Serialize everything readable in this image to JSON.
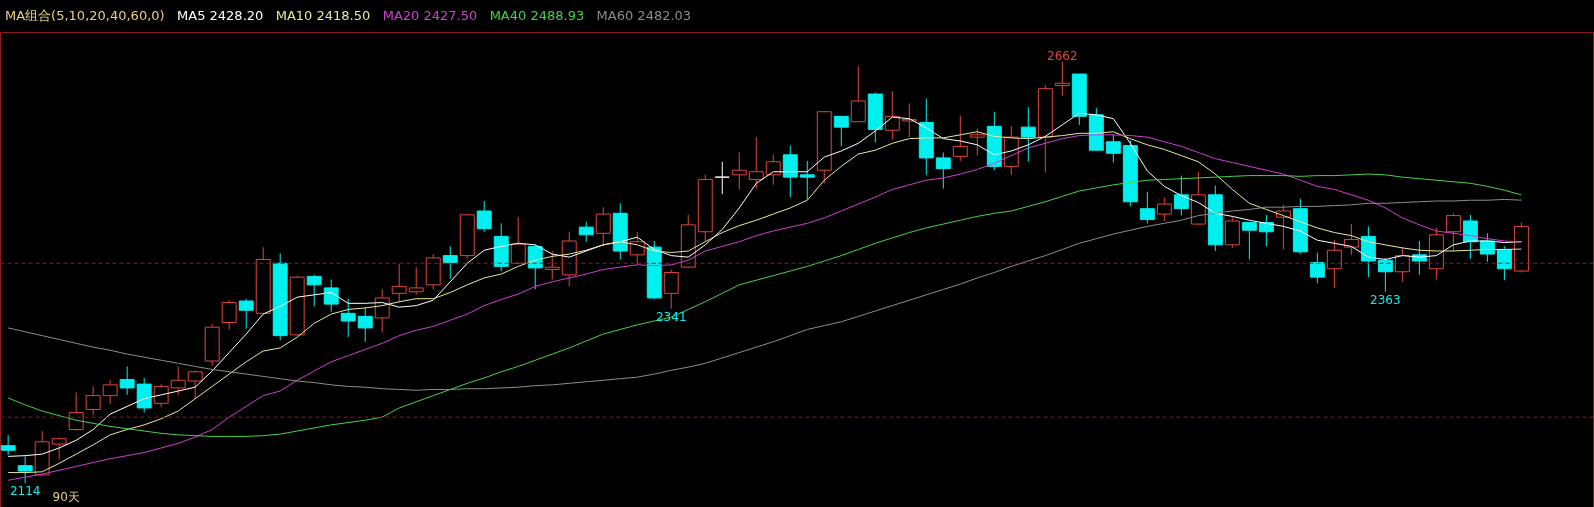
{
  "chart_data": {
    "type": "candlestick",
    "title": "MA组合(5,10,20,40,60,0)",
    "categories": [
      null,
      null,
      null,
      null,
      null,
      null,
      null,
      null,
      null,
      null,
      null,
      null,
      null,
      null,
      null,
      null,
      null,
      null,
      null,
      null,
      null,
      null,
      null,
      null,
      null,
      null,
      null,
      null,
      null,
      null,
      null,
      null,
      null,
      null,
      null,
      null,
      null,
      null,
      null,
      null,
      null,
      null,
      null,
      null,
      null,
      null,
      null,
      null,
      null,
      null,
      null,
      null,
      null,
      null,
      null,
      null,
      null,
      null,
      null,
      null,
      null,
      null,
      null,
      null,
      null,
      null,
      null,
      null,
      null,
      null,
      null,
      null,
      null,
      null,
      null,
      null,
      null,
      null,
      null,
      null,
      null,
      null,
      null,
      null,
      null,
      null,
      null,
      null,
      null,
      null
    ],
    "ohlc": [
      [
        2163,
        2177,
        2151,
        2157
      ],
      [
        2137,
        2149,
        2114,
        2130
      ],
      [
        2125,
        2182,
        2124,
        2168
      ],
      [
        2165,
        2174,
        2145,
        2172
      ],
      [
        2184,
        2232,
        2182,
        2206
      ],
      [
        2210,
        2240,
        2203,
        2228
      ],
      [
        2228,
        2248,
        2217,
        2242
      ],
      [
        2249,
        2266,
        2229,
        2238
      ],
      [
        2243,
        2251,
        2206,
        2212
      ],
      [
        2218,
        2243,
        2213,
        2240
      ],
      [
        2238,
        2266,
        2229,
        2248
      ],
      [
        2247,
        2261,
        2224,
        2259
      ],
      [
        2273,
        2321,
        2267,
        2317
      ],
      [
        2323,
        2352,
        2314,
        2349
      ],
      [
        2351,
        2354,
        2315,
        2339
      ],
      [
        2335,
        2421,
        2335,
        2405
      ],
      [
        2400,
        2413,
        2300,
        2306
      ],
      [
        2307,
        2384,
        2306,
        2382
      ],
      [
        2383,
        2385,
        2344,
        2372
      ],
      [
        2368,
        2379,
        2337,
        2347
      ],
      [
        2335,
        2354,
        2304,
        2325
      ],
      [
        2331,
        2342,
        2298,
        2316
      ],
      [
        2329,
        2366,
        2310,
        2355
      ],
      [
        2361,
        2399,
        2349,
        2370
      ],
      [
        2363,
        2395,
        2359,
        2368
      ],
      [
        2372,
        2412,
        2366,
        2407
      ],
      [
        2410,
        2422,
        2380,
        2401
      ],
      [
        2410,
        2464,
        2406,
        2463
      ],
      [
        2468,
        2481,
        2441,
        2445
      ],
      [
        2435,
        2452,
        2390,
        2396
      ],
      [
        2400,
        2460,
        2400,
        2425
      ],
      [
        2422,
        2424,
        2366,
        2394
      ],
      [
        2392,
        2416,
        2379,
        2395
      ],
      [
        2385,
        2441,
        2370,
        2429
      ],
      [
        2447,
        2454,
        2428,
        2437
      ],
      [
        2439,
        2473,
        2422,
        2464
      ],
      [
        2465,
        2478,
        2405,
        2416
      ],
      [
        2411,
        2441,
        2398,
        2428
      ],
      [
        2421,
        2429,
        2353,
        2355
      ],
      [
        2361,
        2392,
        2341,
        2388
      ],
      [
        2395,
        2463,
        2394,
        2450
      ],
      [
        2441,
        2515,
        2428,
        2509
      ],
      [
        2512,
        2532,
        2490,
        2512
      ],
      [
        2515,
        2544,
        2496,
        2521
      ],
      [
        2509,
        2564,
        2497,
        2519
      ],
      [
        2515,
        2541,
        2502,
        2532
      ],
      [
        2541,
        2553,
        2486,
        2512
      ],
      [
        2515,
        2533,
        2483,
        2512
      ],
      [
        2521,
        2598,
        2504,
        2597
      ],
      [
        2591,
        2591,
        2552,
        2577
      ],
      [
        2584,
        2656,
        2584,
        2611
      ],
      [
        2620,
        2622,
        2557,
        2574
      ],
      [
        2573,
        2624,
        2561,
        2591
      ],
      [
        2585,
        2608,
        2564,
        2587
      ],
      [
        2583,
        2614,
        2515,
        2537
      ],
      [
        2537,
        2544,
        2497,
        2523
      ],
      [
        2539,
        2592,
        2533,
        2552
      ],
      [
        2564,
        2575,
        2540,
        2567
      ],
      [
        2578,
        2597,
        2521,
        2526
      ],
      [
        2526,
        2578,
        2515,
        2564
      ],
      [
        2577,
        2603,
        2532,
        2564
      ],
      [
        2564,
        2632,
        2518,
        2627
      ],
      [
        2631,
        2662,
        2618,
        2634
      ],
      [
        2646,
        2646,
        2580,
        2591
      ],
      [
        2593,
        2602,
        2546,
        2547
      ],
      [
        2558,
        2567,
        2531,
        2543
      ],
      [
        2553,
        2560,
        2474,
        2480
      ],
      [
        2471,
        2493,
        2452,
        2457
      ],
      [
        2464,
        2485,
        2455,
        2477
      ],
      [
        2489,
        2514,
        2462,
        2471
      ],
      [
        2451,
        2519,
        2450,
        2489
      ],
      [
        2489,
        2501,
        2416,
        2424
      ],
      [
        2424,
        2460,
        2420,
        2455
      ],
      [
        2453,
        2453,
        2405,
        2443
      ],
      [
        2453,
        2463,
        2422,
        2441
      ],
      [
        2460,
        2476,
        2418,
        2468
      ],
      [
        2471,
        2484,
        2412,
        2415
      ],
      [
        2401,
        2414,
        2374,
        2382
      ],
      [
        2393,
        2430,
        2368,
        2417
      ],
      [
        2421,
        2451,
        2411,
        2431
      ],
      [
        2435,
        2448,
        2382,
        2403
      ],
      [
        2404,
        2407,
        2363,
        2389
      ],
      [
        2389,
        2421,
        2376,
        2410
      ],
      [
        2411,
        2429,
        2385,
        2403
      ],
      [
        2393,
        2446,
        2379,
        2437
      ],
      [
        2441,
        2465,
        2416,
        2462
      ],
      [
        2455,
        2463,
        2406,
        2428
      ],
      [
        2429,
        2439,
        2402,
        2412
      ],
      [
        2418,
        2422,
        2378,
        2393
      ],
      [
        2390,
        2453,
        2388,
        2448
      ]
    ],
    "series": [
      {
        "name": "MA5 2428.20",
        "type": "line",
        "color": "#ffffff",
        "values": [
          2149,
          2150,
          2152,
          2160,
          2170,
          2184,
          2204,
          2214,
          2224,
          2229,
          2234,
          2239,
          2260,
          2284,
          2308,
          2334,
          2344,
          2356,
          2359,
          2362,
          2348,
          2348,
          2349,
          2343,
          2345,
          2352,
          2376,
          2400,
          2417,
          2422,
          2426,
          2424,
          2412,
          2408,
          2416,
          2424,
          2428,
          2434,
          2418,
          2410,
          2408,
          2424,
          2444,
          2472,
          2504,
          2519,
          2519,
          2519,
          2538,
          2546,
          2556,
          2572,
          2590,
          2588,
          2576,
          2562,
          2559,
          2554,
          2541,
          2546,
          2554,
          2565,
          2580,
          2595,
          2593,
          2588,
          2556,
          2520,
          2500,
          2488,
          2479,
          2465,
          2461,
          2456,
          2452,
          2448,
          2442,
          2430,
          2426,
          2422,
          2408,
          2405,
          2410,
          2408,
          2410,
          2424,
          2429,
          2429,
          2427,
          2428.2
        ]
      },
      {
        "name": "MA10 2418.50",
        "type": "line",
        "color": "#e8e89a",
        "values": [
          2128,
          2128,
          2129,
          2140,
          2152,
          2164,
          2177,
          2184,
          2190,
          2198,
          2208,
          2224,
          2240,
          2256,
          2272,
          2286,
          2290,
          2304,
          2322,
          2334,
          2340,
          2342,
          2345,
          2350,
          2354,
          2354,
          2362,
          2372,
          2381,
          2386,
          2396,
          2404,
          2409,
          2412,
          2417,
          2424,
          2428,
          2424,
          2416,
          2414,
          2416,
          2428,
          2440,
          2449,
          2456,
          2464,
          2472,
          2482,
          2508,
          2526,
          2542,
          2547,
          2556,
          2562,
          2563,
          2563,
          2567,
          2571,
          2565,
          2563,
          2562,
          2564,
          2566,
          2569,
          2569,
          2571,
          2562,
          2554,
          2548,
          2540,
          2532,
          2516,
          2496,
          2478,
          2470,
          2462,
          2454,
          2446,
          2440,
          2436,
          2428,
          2424,
          2420,
          2417,
          2416,
          2416,
          2417,
          2418,
          2418,
          2418.5
        ]
      },
      {
        "name": "MA20 2427.50",
        "type": "line",
        "color": "#d23cd2",
        "values": [
          2118,
          2122,
          2126,
          2131,
          2136,
          2141,
          2146,
          2150,
          2154,
          2160,
          2166,
          2174,
          2184,
          2200,
          2214,
          2228,
          2234,
          2248,
          2260,
          2272,
          2280,
          2288,
          2296,
          2306,
          2313,
          2318,
          2326,
          2334,
          2345,
          2353,
          2360,
          2370,
          2376,
          2381,
          2386,
          2392,
          2395,
          2398,
          2397,
          2398,
          2404,
          2416,
          2422,
          2428,
          2436,
          2442,
          2447,
          2452,
          2459,
          2468,
          2477,
          2486,
          2496,
          2502,
          2508,
          2511,
          2516,
          2522,
          2530,
          2540,
          2550,
          2556,
          2562,
          2566,
          2567,
          2567,
          2566,
          2564,
          2558,
          2552,
          2544,
          2536,
          2531,
          2526,
          2521,
          2516,
          2508,
          2500,
          2496,
          2489,
          2482,
          2472,
          2459,
          2450,
          2442,
          2439,
          2436,
          2432,
          2429,
          2427.5
        ]
      },
      {
        "name": "MA40 2488.93",
        "type": "line",
        "color": "#46d246",
        "values": [
          2225,
          2216,
          2208,
          2202,
          2196,
          2192,
          2188,
          2185,
          2182,
          2179,
          2177,
          2176,
          2175,
          2175,
          2175,
          2176,
          2178,
          2182,
          2186,
          2190,
          2193,
          2196,
          2200,
          2212,
          2220,
          2228,
          2236,
          2244,
          2251,
          2259,
          2266,
          2274,
          2282,
          2290,
          2299,
          2308,
          2314,
          2320,
          2325,
          2330,
          2340,
          2350,
          2361,
          2372,
          2378,
          2384,
          2390,
          2396,
          2403,
          2410,
          2418,
          2426,
          2433,
          2440,
          2446,
          2451,
          2456,
          2461,
          2465,
          2468,
          2474,
          2480,
          2487,
          2494,
          2498,
          2502,
          2505,
          2508,
          2509,
          2510,
          2511,
          2512,
          2513,
          2514,
          2514,
          2514,
          2513,
          2514,
          2514,
          2515,
          2516,
          2515,
          2512,
          2510,
          2508,
          2506,
          2504,
          2500,
          2495,
          2488.93
        ]
      },
      {
        "name": "MA60 2482.03",
        "type": "line",
        "color": "#8c8c8c",
        "values": [
          2316,
          2311,
          2306,
          2301,
          2296,
          2291,
          2287,
          2282,
          2278,
          2274,
          2270,
          2266,
          2262,
          2259,
          2256,
          2253,
          2250,
          2247,
          2245,
          2242,
          2240,
          2239,
          2237,
          2236,
          2235,
          2236,
          2236,
          2237,
          2237,
          2238,
          2239,
          2241,
          2242,
          2244,
          2246,
          2248,
          2250,
          2252,
          2256,
          2261,
          2265,
          2270,
          2277,
          2284,
          2291,
          2298,
          2306,
          2314,
          2319,
          2324,
          2331,
          2338,
          2345,
          2352,
          2359,
          2366,
          2373,
          2381,
          2388,
          2396,
          2403,
          2410,
          2418,
          2426,
          2432,
          2438,
          2443,
          2448,
          2452,
          2456,
          2462,
          2465,
          2468,
          2470,
          2473,
          2473,
          2474,
          2474,
          2475,
          2476,
          2478,
          2478,
          2479,
          2480,
          2481,
          2481,
          2482,
          2482,
          2483,
          2482.03
        ]
      }
    ],
    "ylim": [
      2080,
      2700
    ],
    "tick_labels": false,
    "legend": "top left",
    "ref_lines": [
      {
        "axis": "y",
        "value": 2400,
        "color": "#8b1a1a",
        "line_style": "dashed"
      },
      {
        "axis": "y",
        "value": 2200,
        "color": "#8b1a1a",
        "line_style": "dashed"
      }
    ],
    "annotations": [
      {
        "text": "2662",
        "y": 2662
      },
      {
        "text": "2341",
        "y": 2341
      },
      {
        "text": "2363",
        "y": 2363
      },
      {
        "text": "2114",
        "y": 2114
      },
      "90天"
    ]
  }
}
